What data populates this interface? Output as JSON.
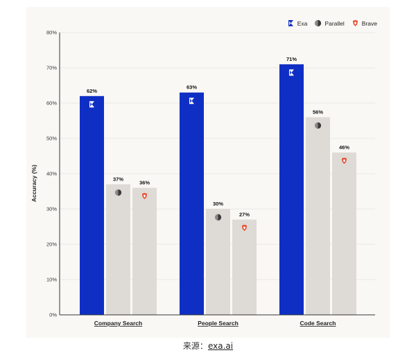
{
  "chart_data": {
    "type": "bar",
    "categories": [
      "Company Search",
      "People Search",
      "Code Search"
    ],
    "series": [
      {
        "name": "Exa",
        "values": [
          62,
          63,
          71
        ],
        "color": "#0f2fc4",
        "icon": "exa-logo-icon"
      },
      {
        "name": "Parallel",
        "values": [
          37,
          30,
          56
        ],
        "color": "#dedad6",
        "icon": "parallel-logo-icon"
      },
      {
        "name": "Brave",
        "values": [
          36,
          27,
          46
        ],
        "color": "#dedad6",
        "icon": "brave-logo-icon"
      }
    ],
    "value_labels": [
      [
        "62%",
        "63%",
        "71%"
      ],
      [
        "37%",
        "30%",
        "56%"
      ],
      [
        "36%",
        "27%",
        "46%"
      ]
    ],
    "ylabel": "Accuracy (%)",
    "xlabel": "",
    "ylim": [
      0,
      80
    ],
    "yticks": [
      "0%",
      "10%",
      "20%",
      "30%",
      "40%",
      "50%",
      "60%",
      "70%",
      "80%"
    ],
    "grid": true,
    "legend_position": "top-right"
  },
  "caption": {
    "prefix": "来源：",
    "link": "exa.ai"
  }
}
